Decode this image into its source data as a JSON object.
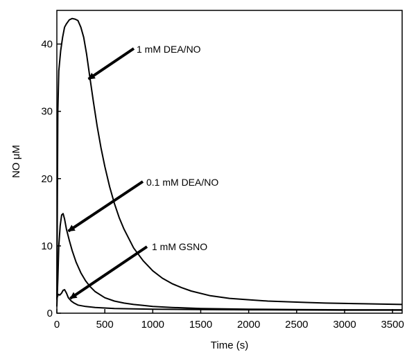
{
  "chart_data": {
    "type": "line",
    "title": "",
    "xlabel": "Time (s)",
    "ylabel": "NO μM",
    "xlim": [
      0,
      3600
    ],
    "ylim": [
      0,
      45
    ],
    "x_ticks": [
      0,
      500,
      1000,
      1500,
      2000,
      2500,
      3000,
      3500
    ],
    "y_ticks": [
      0,
      10,
      20,
      30,
      40
    ],
    "grid": false,
    "legend": "none",
    "colors": {
      "line": "#000000",
      "axis": "#000000"
    },
    "series": [
      {
        "name": "1 mM DEA/NO",
        "x": [
          0,
          10,
          20,
          40,
          60,
          80,
          100,
          130,
          160,
          190,
          220,
          250,
          280,
          310,
          340,
          380,
          420,
          460,
          500,
          550,
          600,
          650,
          700,
          800,
          900,
          1000,
          1100,
          1200,
          1300,
          1400,
          1600,
          1800,
          2000,
          2200,
          2400,
          2600,
          2800,
          3000,
          3200,
          3400,
          3600
        ],
        "y": [
          2,
          30,
          36,
          39,
          41,
          42.5,
          43,
          43.6,
          43.8,
          43.7,
          43.5,
          42.5,
          41,
          38.5,
          35.5,
          31.5,
          27.8,
          24.6,
          21.8,
          18.8,
          16.3,
          14.2,
          12.5,
          9.7,
          7.8,
          6.3,
          5.2,
          4.4,
          3.8,
          3.3,
          2.6,
          2.2,
          2.0,
          1.8,
          1.7,
          1.6,
          1.5,
          1.45,
          1.4,
          1.35,
          1.3
        ]
      },
      {
        "name": "0.1 mM DEA/NO",
        "x": [
          0,
          10,
          20,
          35,
          50,
          65,
          80,
          100,
          130,
          160,
          200,
          250,
          300,
          350,
          400,
          500,
          600,
          700,
          800,
          900,
          1000,
          1200,
          1500,
          2000,
          2500,
          3000,
          3600
        ],
        "y": [
          1,
          5,
          10,
          13,
          14.6,
          14.8,
          14,
          12.5,
          10.8,
          9.3,
          7.6,
          6.0,
          4.8,
          3.9,
          3.2,
          2.3,
          1.8,
          1.5,
          1.3,
          1.15,
          1.0,
          0.85,
          0.7,
          0.6,
          0.55,
          0.5,
          0.5
        ]
      },
      {
        "name": "1 mM GSNO",
        "x": [
          0,
          15,
          30,
          50,
          65,
          80,
          100,
          120,
          150,
          180,
          220,
          300,
          400,
          600,
          800,
          1000,
          1500,
          2000,
          3000,
          3600
        ],
        "y": [
          2.2,
          2.8,
          2.7,
          3.0,
          3.4,
          3.5,
          3.0,
          2.3,
          1.8,
          1.5,
          1.2,
          1.0,
          0.85,
          0.7,
          0.65,
          0.6,
          0.55,
          0.5,
          0.45,
          0.45
        ]
      }
    ],
    "annotations": [
      {
        "text": "1 mM DEA/NO",
        "arrow_to": {
          "x": 330,
          "y": 34.8
        }
      },
      {
        "text": "0.1 mM DEA/NO",
        "arrow_to": {
          "x": 120,
          "y": 12.2
        }
      },
      {
        "text": "1 mM GSNO",
        "arrow_to": {
          "x": 140,
          "y": 2.2
        }
      }
    ]
  }
}
